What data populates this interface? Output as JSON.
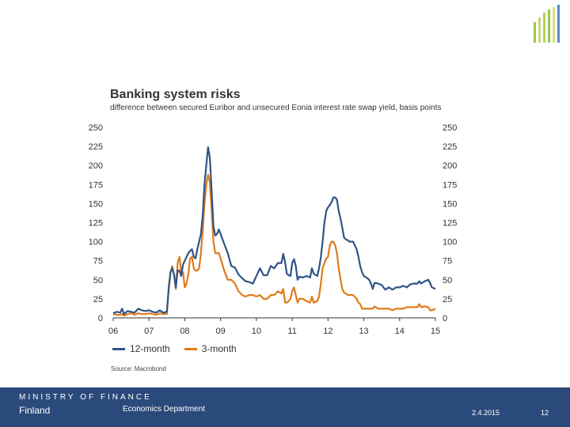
{
  "branding": {
    "ministry_line": "MINISTRY OF FINANCE",
    "country": "Finland",
    "department": "Economics Department"
  },
  "footer": {
    "date": "2.4.2015",
    "page_number": "12"
  },
  "colors": {
    "footer_bg": "#2b4a7c",
    "series_12m": "#2f5487",
    "series_3m": "#e07b1a",
    "logo_green": "#9ec34b",
    "logo_blue": "#5b86c2"
  },
  "chart_data": {
    "type": "line",
    "title": "Banking system risks",
    "subtitle": "difference between secured Euribor and unsecured Eonia interest rate swap yield, basis points",
    "source": "Source: Macrobond",
    "xlabel": "",
    "ylabel": "basis points",
    "ylim": [
      0,
      250
    ],
    "xlim": [
      2006,
      2015
    ],
    "y_ticks": [
      "0",
      "25",
      "50",
      "75",
      "100",
      "125",
      "150",
      "175",
      "200",
      "225",
      "250"
    ],
    "x_ticks": [
      {
        "x": 2006,
        "label": "06"
      },
      {
        "x": 2007,
        "label": "07"
      },
      {
        "x": 2008,
        "label": "08"
      },
      {
        "x": 2009,
        "label": "09"
      },
      {
        "x": 2010,
        "label": "10"
      },
      {
        "x": 2011,
        "label": "11"
      },
      {
        "x": 2012,
        "label": "12"
      },
      {
        "x": 2013,
        "label": "13"
      },
      {
        "x": 2014,
        "label": "14"
      },
      {
        "x": 2015,
        "label": "15"
      }
    ],
    "series": [
      {
        "name": "12-month",
        "color": "#2f5487",
        "points": [
          [
            2006.0,
            6
          ],
          [
            2006.1,
            8
          ],
          [
            2006.2,
            7
          ],
          [
            2006.25,
            12
          ],
          [
            2006.3,
            5
          ],
          [
            2006.4,
            9
          ],
          [
            2006.5,
            8
          ],
          [
            2006.6,
            7
          ],
          [
            2006.7,
            12
          ],
          [
            2006.8,
            10
          ],
          [
            2006.9,
            9
          ],
          [
            2007.0,
            10
          ],
          [
            2007.1,
            8
          ],
          [
            2007.2,
            7
          ],
          [
            2007.3,
            10
          ],
          [
            2007.4,
            7
          ],
          [
            2007.5,
            8
          ],
          [
            2007.55,
            38
          ],
          [
            2007.6,
            60
          ],
          [
            2007.65,
            65
          ],
          [
            2007.7,
            57
          ],
          [
            2007.75,
            40
          ],
          [
            2007.8,
            62
          ],
          [
            2007.85,
            62
          ],
          [
            2007.9,
            55
          ],
          [
            2007.95,
            70
          ],
          [
            2008.0,
            75
          ],
          [
            2008.05,
            80
          ],
          [
            2008.1,
            85
          ],
          [
            2008.15,
            88
          ],
          [
            2008.2,
            90
          ],
          [
            2008.25,
            80
          ],
          [
            2008.3,
            78
          ],
          [
            2008.35,
            90
          ],
          [
            2008.4,
            100
          ],
          [
            2008.45,
            110
          ],
          [
            2008.5,
            135
          ],
          [
            2008.55,
            175
          ],
          [
            2008.6,
            200
          ],
          [
            2008.65,
            224
          ],
          [
            2008.7,
            210
          ],
          [
            2008.75,
            165
          ],
          [
            2008.8,
            120
          ],
          [
            2008.85,
            108
          ],
          [
            2008.9,
            110
          ],
          [
            2008.95,
            116
          ],
          [
            2009.0,
            110
          ],
          [
            2009.1,
            97
          ],
          [
            2009.2,
            85
          ],
          [
            2009.3,
            68
          ],
          [
            2009.4,
            66
          ],
          [
            2009.5,
            57
          ],
          [
            2009.6,
            52
          ],
          [
            2009.7,
            48
          ],
          [
            2009.8,
            47
          ],
          [
            2009.9,
            45
          ],
          [
            2010.0,
            55
          ],
          [
            2010.1,
            65
          ],
          [
            2010.2,
            56
          ],
          [
            2010.3,
            56
          ],
          [
            2010.4,
            68
          ],
          [
            2010.5,
            65
          ],
          [
            2010.6,
            72
          ],
          [
            2010.7,
            72
          ],
          [
            2010.75,
            84
          ],
          [
            2010.8,
            73
          ],
          [
            2010.85,
            58
          ],
          [
            2010.9,
            56
          ],
          [
            2010.95,
            55
          ],
          [
            2011.0,
            72
          ],
          [
            2011.05,
            77
          ],
          [
            2011.1,
            68
          ],
          [
            2011.15,
            50
          ],
          [
            2011.2,
            54
          ],
          [
            2011.3,
            53
          ],
          [
            2011.4,
            55
          ],
          [
            2011.5,
            53
          ],
          [
            2011.55,
            65
          ],
          [
            2011.6,
            58
          ],
          [
            2011.7,
            55
          ],
          [
            2011.75,
            65
          ],
          [
            2011.8,
            80
          ],
          [
            2011.85,
            100
          ],
          [
            2011.9,
            125
          ],
          [
            2011.95,
            140
          ],
          [
            2012.0,
            145
          ],
          [
            2012.05,
            148
          ],
          [
            2012.1,
            152
          ],
          [
            2012.15,
            158
          ],
          [
            2012.2,
            158
          ],
          [
            2012.25,
            155
          ],
          [
            2012.3,
            140
          ],
          [
            2012.35,
            130
          ],
          [
            2012.4,
            118
          ],
          [
            2012.45,
            105
          ],
          [
            2012.5,
            103
          ],
          [
            2012.55,
            102
          ],
          [
            2012.6,
            100
          ],
          [
            2012.7,
            100
          ],
          [
            2012.8,
            90
          ],
          [
            2012.85,
            80
          ],
          [
            2012.9,
            68
          ],
          [
            2012.95,
            60
          ],
          [
            2013.0,
            55
          ],
          [
            2013.1,
            52
          ],
          [
            2013.15,
            50
          ],
          [
            2013.2,
            45
          ],
          [
            2013.25,
            38
          ],
          [
            2013.3,
            46
          ],
          [
            2013.4,
            45
          ],
          [
            2013.5,
            43
          ],
          [
            2013.55,
            40
          ],
          [
            2013.6,
            37
          ],
          [
            2013.7,
            40
          ],
          [
            2013.8,
            37
          ],
          [
            2013.9,
            40
          ],
          [
            2014.0,
            40
          ],
          [
            2014.1,
            42
          ],
          [
            2014.2,
            40
          ],
          [
            2014.3,
            44
          ],
          [
            2014.4,
            45
          ],
          [
            2014.5,
            45
          ],
          [
            2014.55,
            48
          ],
          [
            2014.6,
            45
          ],
          [
            2014.7,
            48
          ],
          [
            2014.8,
            50
          ],
          [
            2014.85,
            46
          ],
          [
            2014.9,
            40
          ],
          [
            2015.0,
            38
          ]
        ]
      },
      {
        "name": "3-month",
        "color": "#e07b1a",
        "points": [
          [
            2006.0,
            5
          ],
          [
            2006.1,
            4
          ],
          [
            2006.2,
            4
          ],
          [
            2006.25,
            5
          ],
          [
            2006.3,
            3
          ],
          [
            2006.4,
            5
          ],
          [
            2006.5,
            6
          ],
          [
            2006.6,
            4
          ],
          [
            2006.7,
            6
          ],
          [
            2006.8,
            5
          ],
          [
            2006.9,
            5
          ],
          [
            2007.0,
            6
          ],
          [
            2007.1,
            5
          ],
          [
            2007.2,
            4
          ],
          [
            2007.3,
            6
          ],
          [
            2007.4,
            5
          ],
          [
            2007.5,
            5
          ],
          [
            2007.55,
            40
          ],
          [
            2007.6,
            60
          ],
          [
            2007.65,
            68
          ],
          [
            2007.7,
            55
          ],
          [
            2007.75,
            38
          ],
          [
            2007.8,
            72
          ],
          [
            2007.85,
            80
          ],
          [
            2007.9,
            60
          ],
          [
            2007.95,
            60
          ],
          [
            2008.0,
            40
          ],
          [
            2008.05,
            45
          ],
          [
            2008.1,
            58
          ],
          [
            2008.15,
            78
          ],
          [
            2008.2,
            80
          ],
          [
            2008.25,
            65
          ],
          [
            2008.3,
            62
          ],
          [
            2008.35,
            62
          ],
          [
            2008.4,
            65
          ],
          [
            2008.45,
            85
          ],
          [
            2008.5,
            115
          ],
          [
            2008.55,
            150
          ],
          [
            2008.6,
            175
          ],
          [
            2008.65,
            188
          ],
          [
            2008.7,
            178
          ],
          [
            2008.75,
            140
          ],
          [
            2008.8,
            100
          ],
          [
            2008.85,
            85
          ],
          [
            2008.9,
            85
          ],
          [
            2008.95,
            85
          ],
          [
            2009.0,
            78
          ],
          [
            2009.1,
            62
          ],
          [
            2009.2,
            50
          ],
          [
            2009.3,
            50
          ],
          [
            2009.4,
            45
          ],
          [
            2009.5,
            35
          ],
          [
            2009.6,
            30
          ],
          [
            2009.7,
            28
          ],
          [
            2009.8,
            30
          ],
          [
            2009.9,
            30
          ],
          [
            2010.0,
            28
          ],
          [
            2010.1,
            30
          ],
          [
            2010.2,
            25
          ],
          [
            2010.3,
            25
          ],
          [
            2010.4,
            30
          ],
          [
            2010.5,
            30
          ],
          [
            2010.6,
            35
          ],
          [
            2010.7,
            32
          ],
          [
            2010.75,
            38
          ],
          [
            2010.8,
            20
          ],
          [
            2010.85,
            20
          ],
          [
            2010.9,
            22
          ],
          [
            2010.95,
            25
          ],
          [
            2011.0,
            35
          ],
          [
            2011.05,
            40
          ],
          [
            2011.1,
            30
          ],
          [
            2011.15,
            20
          ],
          [
            2011.2,
            25
          ],
          [
            2011.3,
            25
          ],
          [
            2011.4,
            22
          ],
          [
            2011.5,
            20
          ],
          [
            2011.55,
            28
          ],
          [
            2011.6,
            20
          ],
          [
            2011.7,
            22
          ],
          [
            2011.75,
            28
          ],
          [
            2011.8,
            45
          ],
          [
            2011.85,
            65
          ],
          [
            2011.9,
            72
          ],
          [
            2011.95,
            78
          ],
          [
            2012.0,
            80
          ],
          [
            2012.05,
            95
          ],
          [
            2012.1,
            100
          ],
          [
            2012.15,
            100
          ],
          [
            2012.2,
            95
          ],
          [
            2012.25,
            85
          ],
          [
            2012.3,
            65
          ],
          [
            2012.35,
            50
          ],
          [
            2012.4,
            38
          ],
          [
            2012.45,
            33
          ],
          [
            2012.5,
            32
          ],
          [
            2012.55,
            30
          ],
          [
            2012.6,
            30
          ],
          [
            2012.7,
            30
          ],
          [
            2012.8,
            25
          ],
          [
            2012.85,
            20
          ],
          [
            2012.9,
            18
          ],
          [
            2012.95,
            12
          ],
          [
            2013.0,
            12
          ],
          [
            2013.1,
            12
          ],
          [
            2013.15,
            12
          ],
          [
            2013.2,
            12
          ],
          [
            2013.25,
            12
          ],
          [
            2013.3,
            15
          ],
          [
            2013.4,
            12
          ],
          [
            2013.5,
            12
          ],
          [
            2013.55,
            12
          ],
          [
            2013.6,
            12
          ],
          [
            2013.7,
            12
          ],
          [
            2013.8,
            10
          ],
          [
            2013.9,
            12
          ],
          [
            2014.0,
            12
          ],
          [
            2014.1,
            12
          ],
          [
            2014.2,
            14
          ],
          [
            2014.3,
            14
          ],
          [
            2014.4,
            14
          ],
          [
            2014.5,
            14
          ],
          [
            2014.55,
            18
          ],
          [
            2014.6,
            14
          ],
          [
            2014.7,
            15
          ],
          [
            2014.8,
            14
          ],
          [
            2014.85,
            10
          ],
          [
            2014.9,
            10
          ],
          [
            2015.0,
            12
          ]
        ]
      }
    ]
  }
}
